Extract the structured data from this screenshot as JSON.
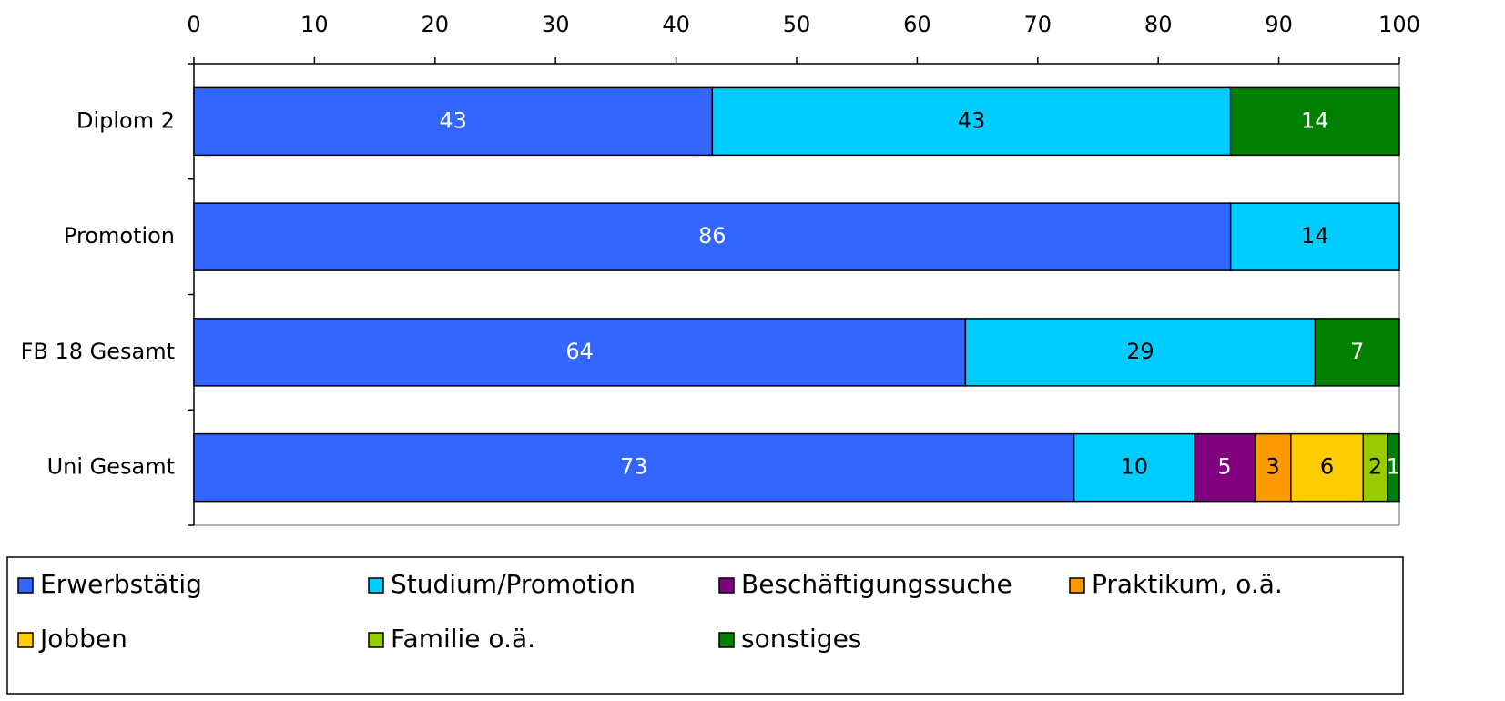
{
  "chart_data": {
    "type": "stacked_barh",
    "categories": [
      "Diplom 2",
      "Promotion",
      "FB 18 Gesamt",
      "Uni Gesamt"
    ],
    "series": [
      {
        "name": "Erwerbstätig",
        "color": "#3366ff",
        "label_color": "#ffffff",
        "values": [
          43,
          86,
          64,
          73
        ]
      },
      {
        "name": "Studium/Promotion",
        "color": "#00ccff",
        "label_color": "#000000",
        "values": [
          43,
          14,
          29,
          10
        ]
      },
      {
        "name": "Beschäftigungssuche",
        "color": "#800080",
        "label_color": "#ffffff",
        "values": [
          null,
          null,
          null,
          5
        ]
      },
      {
        "name": "Praktikum, o.ä.",
        "color": "#ff9900",
        "label_color": "#000000",
        "values": [
          null,
          null,
          null,
          3
        ]
      },
      {
        "name": "Jobben",
        "color": "#ffcc00",
        "label_color": "#000000",
        "values": [
          null,
          null,
          null,
          6
        ]
      },
      {
        "name": "Familie o.ä.",
        "color": "#99cc00",
        "label_color": "#000000",
        "values": [
          null,
          null,
          null,
          2
        ]
      },
      {
        "name": "sonstiges",
        "color": "#008000",
        "label_color": "#ffffff",
        "values": [
          14,
          null,
          7,
          1
        ]
      }
    ],
    "xlim": [
      0,
      100
    ],
    "xticks": [
      0,
      10,
      20,
      30,
      40,
      50,
      60,
      70,
      80,
      90,
      100
    ],
    "legend": "bottom",
    "grid": false
  }
}
